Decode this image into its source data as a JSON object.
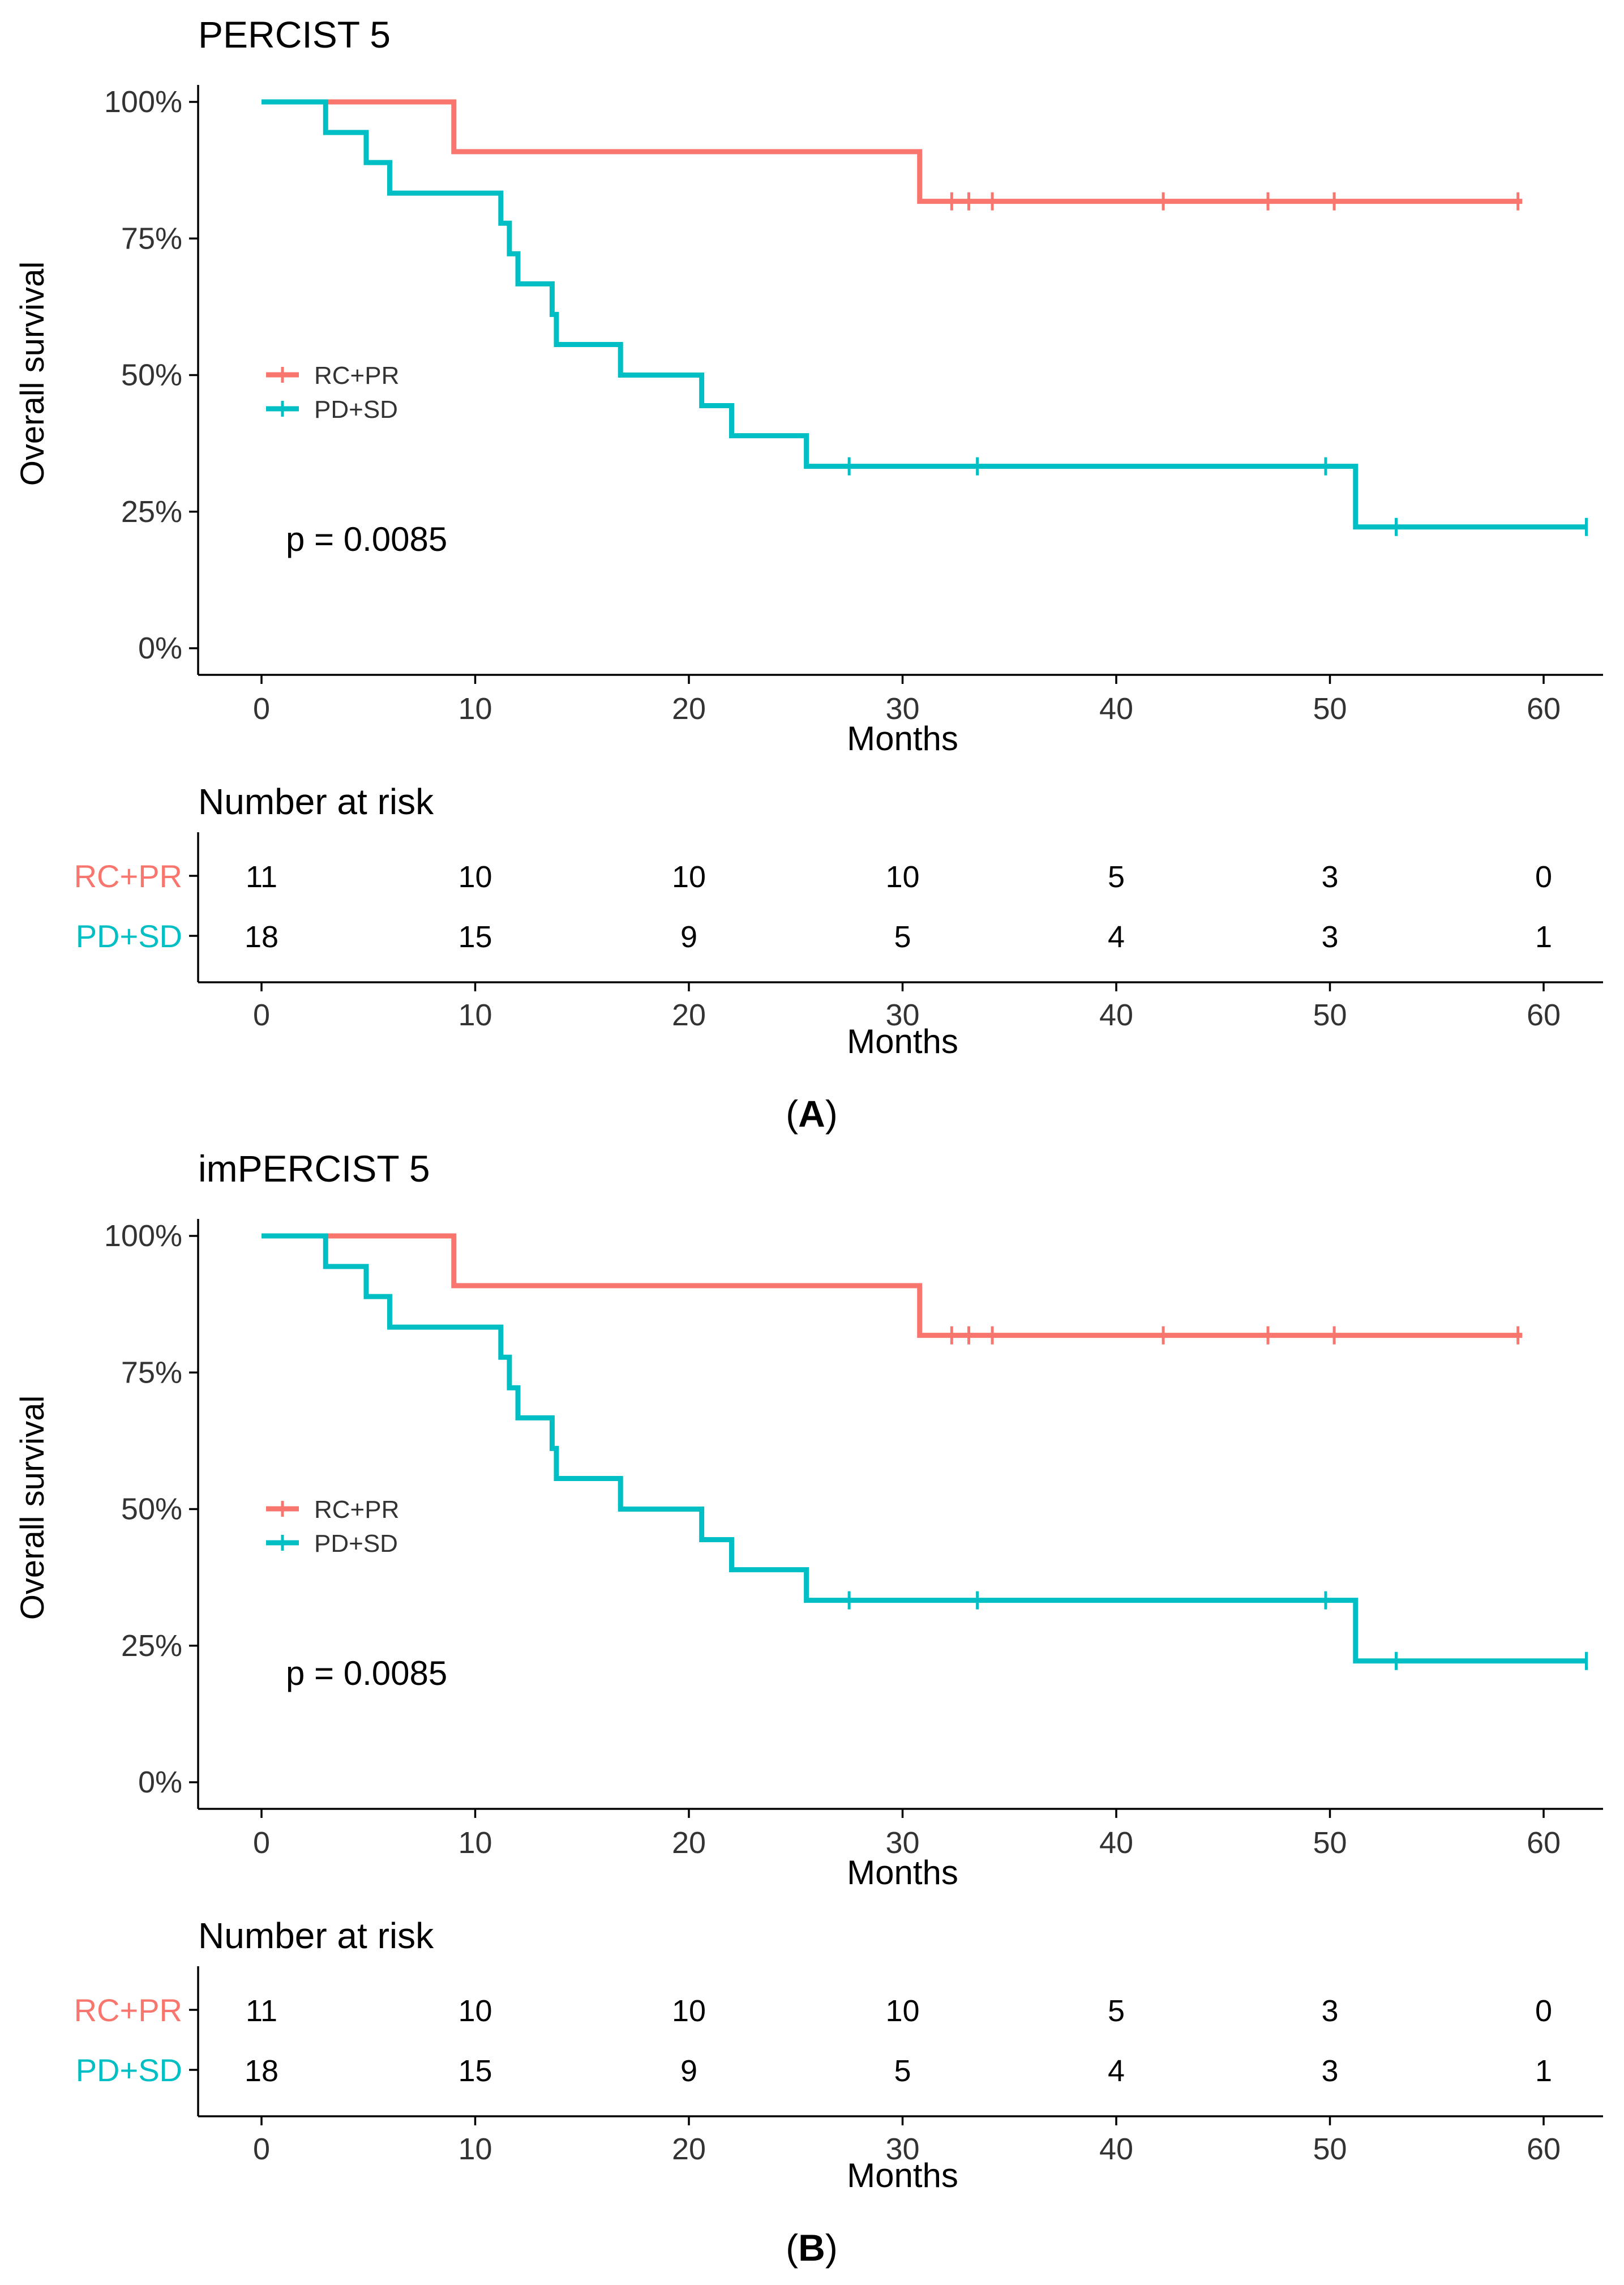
{
  "colors": {
    "rc_pr": "#F8766D",
    "pd_sd": "#00BFC4",
    "axis": "#000000",
    "text": "#000000",
    "background": "#ffffff"
  },
  "chart_data": [
    {
      "type": "line",
      "step": true,
      "title": "PERCIST 5",
      "caption": "A",
      "xlabel": "Months",
      "ylabel": "Overall survival",
      "xlim": [
        0,
        62
      ],
      "ylim": [
        0,
        1
      ],
      "xticks": [
        "0",
        "10",
        "20",
        "30",
        "40",
        "50",
        "60"
      ],
      "yticks": [
        "0%",
        "25%",
        "50%",
        "75%",
        "100%"
      ],
      "grid": false,
      "legend_position": "left-middle",
      "p_value_label": "p = 0.0085",
      "series": [
        {
          "name": "RC+PR",
          "color_key": "rc_pr",
          "steps": [
            [
              0,
              1.0
            ],
            [
              9,
              0.909
            ],
            [
              30.8,
              0.818
            ],
            [
              59,
              0.818
            ]
          ],
          "censor_times": [
            32.3,
            33.1,
            34.2,
            42.2,
            47.1,
            50.2,
            58.8
          ]
        },
        {
          "name": "PD+SD",
          "color_key": "pd_sd",
          "steps": [
            [
              0,
              1.0
            ],
            [
              3,
              0.944
            ],
            [
              4.9,
              0.889
            ],
            [
              6,
              0.833
            ],
            [
              11.2,
              0.778
            ],
            [
              11.6,
              0.722
            ],
            [
              12,
              0.667
            ],
            [
              13.6,
              0.611
            ],
            [
              13.8,
              0.556
            ],
            [
              16.8,
              0.5
            ],
            [
              20.6,
              0.444
            ],
            [
              22,
              0.389
            ],
            [
              25.5,
              0.333
            ],
            [
              51.2,
              0.222
            ],
            [
              62,
              0.222
            ]
          ],
          "censor_times": [
            27.5,
            33.5,
            49.8,
            53.1,
            62
          ]
        }
      ],
      "risk_table": {
        "title": "Number at risk",
        "xlabel": "Months",
        "times": [
          0,
          10,
          20,
          30,
          40,
          50,
          60
        ],
        "xticks": [
          "0",
          "10",
          "20",
          "30",
          "40",
          "50",
          "60"
        ],
        "rows": [
          {
            "name": "RC+PR",
            "color_key": "rc_pr",
            "counts": [
              "11",
              "10",
              "10",
              "10",
              "5",
              "3",
              "0"
            ]
          },
          {
            "name": "PD+SD",
            "color_key": "pd_sd",
            "counts": [
              "18",
              "15",
              "9",
              "5",
              "4",
              "3",
              "1"
            ]
          }
        ]
      }
    },
    {
      "type": "line",
      "step": true,
      "title": "imPERCIST 5",
      "caption": "B",
      "xlabel": "Months",
      "ylabel": "Overall survival",
      "xlim": [
        0,
        62
      ],
      "ylim": [
        0,
        1
      ],
      "xticks": [
        "0",
        "10",
        "20",
        "30",
        "40",
        "50",
        "60"
      ],
      "yticks": [
        "0%",
        "25%",
        "50%",
        "75%",
        "100%"
      ],
      "grid": false,
      "legend_position": "left-middle",
      "p_value_label": "p = 0.0085",
      "series": [
        {
          "name": "RC+PR",
          "color_key": "rc_pr",
          "steps": [
            [
              0,
              1.0
            ],
            [
              9,
              0.909
            ],
            [
              30.8,
              0.818
            ],
            [
              59,
              0.818
            ]
          ],
          "censor_times": [
            32.3,
            33.1,
            34.2,
            42.2,
            47.1,
            50.2,
            58.8
          ]
        },
        {
          "name": "PD+SD",
          "color_key": "pd_sd",
          "steps": [
            [
              0,
              1.0
            ],
            [
              3,
              0.944
            ],
            [
              4.9,
              0.889
            ],
            [
              6,
              0.833
            ],
            [
              11.2,
              0.778
            ],
            [
              11.6,
              0.722
            ],
            [
              12,
              0.667
            ],
            [
              13.6,
              0.611
            ],
            [
              13.8,
              0.556
            ],
            [
              16.8,
              0.5
            ],
            [
              20.6,
              0.444
            ],
            [
              22,
              0.389
            ],
            [
              25.5,
              0.333
            ],
            [
              51.2,
              0.222
            ],
            [
              62,
              0.222
            ]
          ],
          "censor_times": [
            27.5,
            33.5,
            49.8,
            53.1,
            62
          ]
        }
      ],
      "risk_table": {
        "title": "Number at risk",
        "xlabel": "Months",
        "times": [
          0,
          10,
          20,
          30,
          40,
          50,
          60
        ],
        "xticks": [
          "0",
          "10",
          "20",
          "30",
          "40",
          "50",
          "60"
        ],
        "rows": [
          {
            "name": "RC+PR",
            "color_key": "rc_pr",
            "counts": [
              "11",
              "10",
              "10",
              "10",
              "5",
              "3",
              "0"
            ]
          },
          {
            "name": "PD+SD",
            "color_key": "pd_sd",
            "counts": [
              "18",
              "15",
              "9",
              "5",
              "4",
              "3",
              "1"
            ]
          }
        ]
      }
    }
  ]
}
